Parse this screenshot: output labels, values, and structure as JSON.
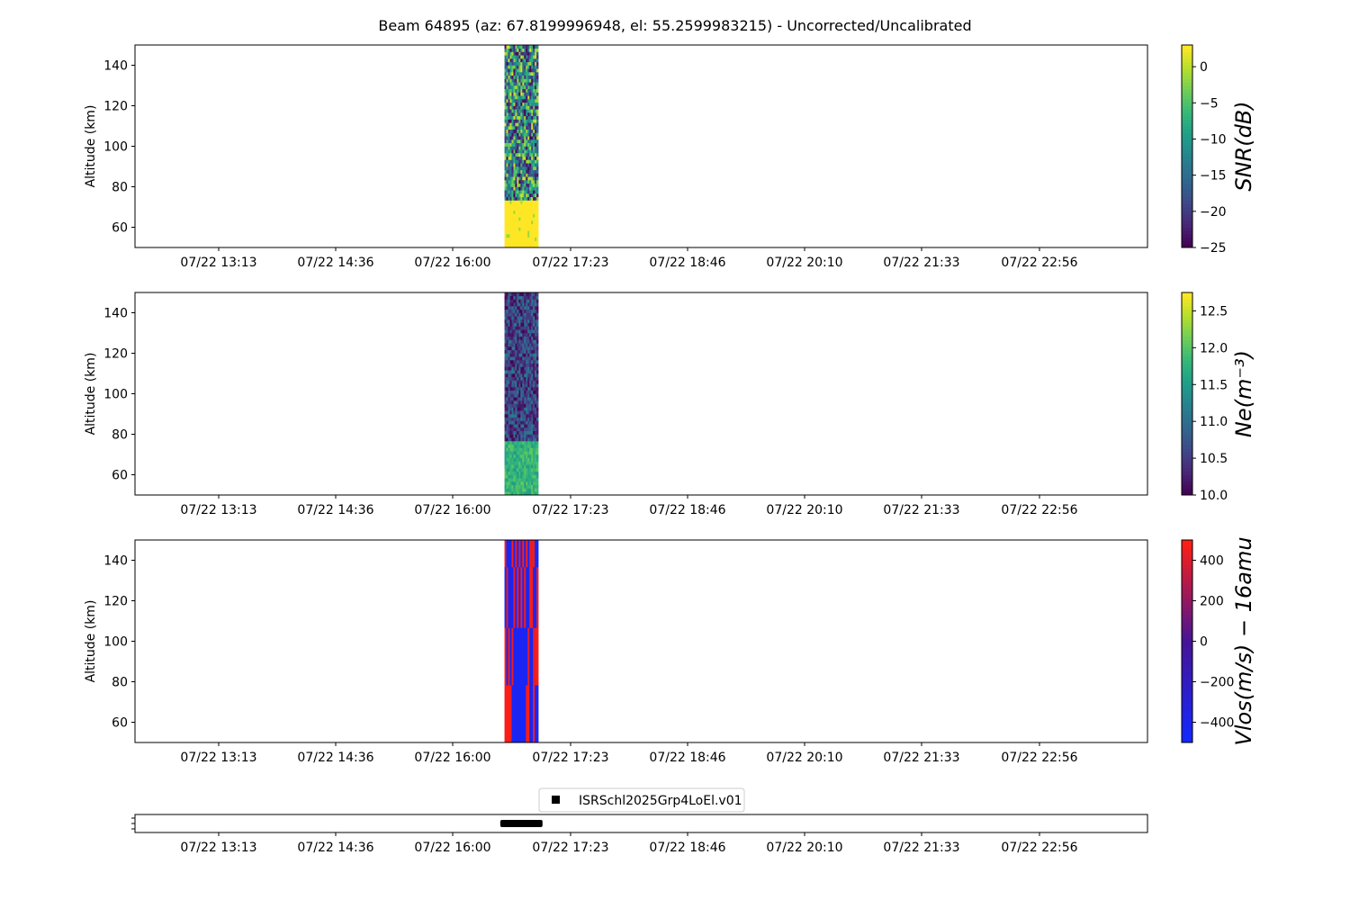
{
  "chart_data": {
    "title": "Beam 64895 (az: 67.8199996948, el: 55.2599983215) - Uncorrected/Uncalibrated",
    "x_tick_labels": [
      "07/22 13:13",
      "07/22 14:36",
      "07/22 16:00",
      "07/22 17:23",
      "07/22 18:46",
      "07/22 20:10",
      "07/22 21:33",
      "07/22 22:56"
    ],
    "panels": [
      {
        "type": "heatmap",
        "ylabel": "Altitude (km)",
        "ylim": [
          50,
          150
        ],
        "yticks": [
          60,
          80,
          100,
          120,
          140
        ],
        "data_time_range": [
          "07/22 16:36",
          "07/22 17:00"
        ],
        "colorbar": {
          "label": "SNR(dB)",
          "colormap": "viridis",
          "range": [
            -25,
            3
          ],
          "ticks": [
            0,
            -5,
            -10,
            -15,
            -20,
            -25
          ],
          "tick_labels": [
            "0",
            "−5",
            "−10",
            "−15",
            "−20",
            "−25"
          ]
        },
        "layers": [
          {
            "alt_range": [
              50,
              74
            ],
            "typical_value": 3,
            "description": "saturated"
          },
          {
            "alt_range": [
              74,
              150
            ],
            "typical_value": -12,
            "description": "noisy"
          }
        ]
      },
      {
        "type": "heatmap",
        "ylabel": "Altitude (km)",
        "ylim": [
          50,
          150
        ],
        "yticks": [
          60,
          80,
          100,
          120,
          140
        ],
        "data_time_range": [
          "07/22 16:36",
          "07/22 17:00"
        ],
        "colorbar": {
          "label": "Ne(m⁻³)",
          "colormap": "viridis",
          "range": [
            10.0,
            12.75
          ],
          "ticks": [
            12.5,
            12.0,
            11.5,
            11.0,
            10.5,
            10.0
          ],
          "tick_labels": [
            "12.5",
            "12.0",
            "11.5",
            "11.0",
            "10.5",
            "10.0"
          ]
        },
        "layers": [
          {
            "alt_range": [
              50,
              76
            ],
            "typical_value": 11.8
          },
          {
            "alt_range": [
              76,
              150
            ],
            "typical_value": 10.6
          }
        ]
      },
      {
        "type": "heatmap",
        "ylabel": "Altitude (km)",
        "ylim": [
          50,
          150
        ],
        "yticks": [
          60,
          80,
          100,
          120,
          140
        ],
        "data_time_range": [
          "07/22 16:36",
          "07/22 17:00"
        ],
        "colorbar": {
          "label": "Vlos(m/s) − 16amu",
          "colormap": "bwr",
          "range": [
            -500,
            500
          ],
          "ticks": [
            400,
            200,
            0,
            -200,
            -400
          ],
          "tick_labels": [
            "400",
            "200",
            "0",
            "−200",
            "−400"
          ]
        },
        "altitude_blocks": [
          [
            50,
            78
          ],
          [
            78,
            106
          ],
          [
            106,
            136
          ],
          [
            136,
            150
          ]
        ]
      }
    ],
    "experiment_panel": {
      "type": "timeline",
      "legend": "ISRSchl2025Grp4LoEl.v01",
      "time_range": [
        "07/22 16:33",
        "07/22 17:03"
      ],
      "marker_color": "#000000"
    }
  }
}
